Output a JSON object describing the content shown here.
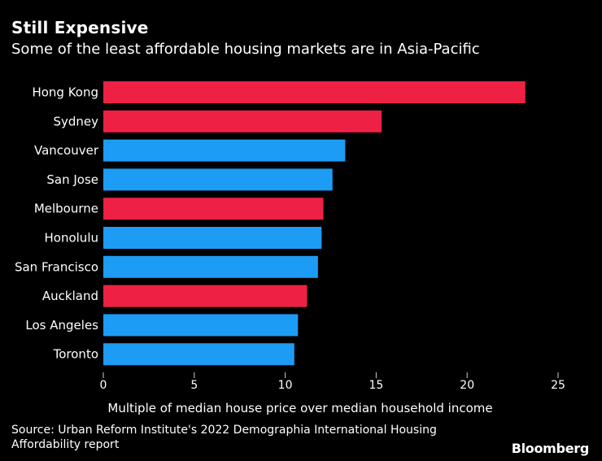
{
  "colors": {
    "background": "#000000",
    "asia_pacific": "#ee2144",
    "other": "#1c9cf5"
  },
  "chart_data": {
    "type": "bar",
    "orientation": "horizontal",
    "title": "Still Expensive",
    "subtitle": "Some of the least affordable housing markets are in Asia-Pacific",
    "xlabel": "Multiple of median house price over median household income",
    "ylabel": "",
    "xlim": [
      0,
      25
    ],
    "xticks": [
      "0",
      "5",
      "10",
      "15",
      "20",
      "25"
    ],
    "categories": [
      "Hong Kong",
      "Sydney",
      "Vancouver",
      "San Jose",
      "Melbourne",
      "Honolulu",
      "San Francisco",
      "Auckland",
      "Los Angeles",
      "Toronto"
    ],
    "values": [
      23.2,
      15.3,
      13.3,
      12.6,
      12.1,
      12.0,
      11.8,
      11.2,
      10.7,
      10.5
    ],
    "groups": [
      "asia-pacific",
      "asia-pacific",
      "other",
      "other",
      "asia-pacific",
      "other",
      "other",
      "asia-pacific",
      "other",
      "other"
    ],
    "grid": false
  },
  "footer": {
    "source": "Source: Urban Reform Institute's 2022 Demographia International Housing Affordability report",
    "brand": "Bloomberg"
  }
}
